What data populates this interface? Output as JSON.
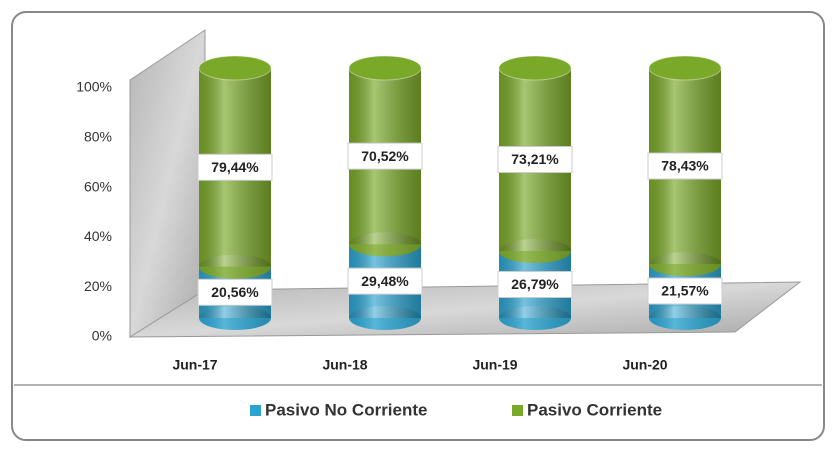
{
  "chart_data": {
    "type": "stacked-cylinder",
    "categories": [
      "Jun-17",
      "Jun-18",
      "Jun-19",
      "Jun-20"
    ],
    "series": [
      {
        "name": "Pasivo No Corriente",
        "color": "#2ba3d0",
        "values": [
          20.56,
          29.48,
          26.79,
          21.57
        ],
        "value_labels": [
          "20,56%",
          "29,48%",
          "26,79%",
          "21,57%"
        ]
      },
      {
        "name": "Pasivo Corriente",
        "color": "#7aa828",
        "values": [
          79.44,
          70.52,
          73.21,
          78.43
        ],
        "value_labels": [
          "79,44%",
          "70,52%",
          "73,21%",
          "78,43%"
        ]
      }
    ],
    "ylim": [
      0,
      100
    ],
    "yticks": [
      {
        "value": 0,
        "label": "0%"
      },
      {
        "value": 20,
        "label": "20%"
      },
      {
        "value": 40,
        "label": "40%"
      },
      {
        "value": 60,
        "label": "60%"
      },
      {
        "value": 80,
        "label": "80%"
      },
      {
        "value": 100,
        "label": "100%"
      }
    ],
    "legend": "bottom"
  }
}
